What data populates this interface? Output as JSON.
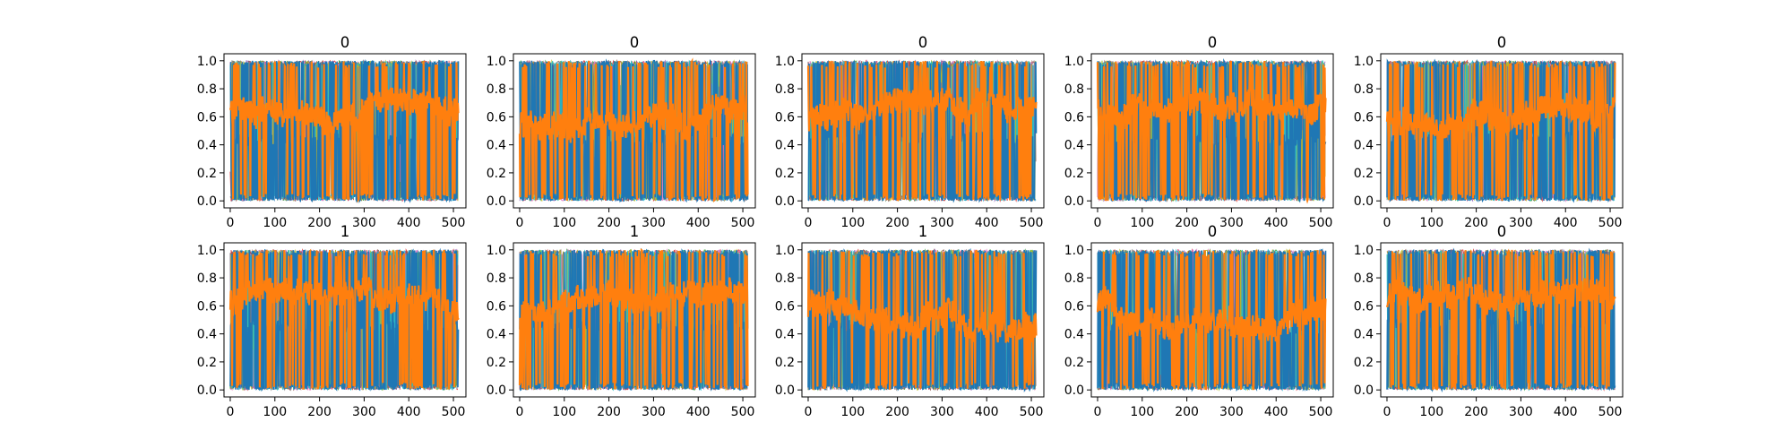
{
  "chart_data": [
    {
      "type": "line",
      "title": "0",
      "xlabel": "",
      "ylabel": "",
      "xlim": [
        -14,
        528
      ],
      "ylim": [
        -0.05,
        1.05
      ],
      "xticks": [
        "0",
        "100",
        "200",
        "300",
        "400",
        "500"
      ],
      "yticks": [
        "0.0",
        "0.2",
        "0.4",
        "0.6",
        "0.8",
        "1.0"
      ],
      "n_points": 512,
      "grid": false,
      "legend": "none",
      "series_colors": [
        "#1f77b4",
        "#ff7f0e",
        "#2ca02c",
        "#d62728",
        "#9467bd",
        "#8c564b",
        "#e377c2",
        "#7f7f7f",
        "#bcbd22",
        "#17becf"
      ],
      "dominant_series": [
        "#1f77b4",
        "#ff7f0e"
      ]
    },
    {
      "type": "line",
      "title": "0",
      "xlabel": "",
      "ylabel": "",
      "xlim": [
        -14,
        528
      ],
      "ylim": [
        -0.05,
        1.05
      ],
      "xticks": [
        "0",
        "100",
        "200",
        "300",
        "400",
        "500"
      ],
      "yticks": [
        "0.0",
        "0.2",
        "0.4",
        "0.6",
        "0.8",
        "1.0"
      ],
      "n_points": 512,
      "grid": false,
      "legend": "none",
      "series_colors": [
        "#1f77b4",
        "#ff7f0e",
        "#2ca02c",
        "#d62728",
        "#9467bd",
        "#8c564b",
        "#e377c2",
        "#7f7f7f",
        "#bcbd22",
        "#17becf"
      ],
      "dominant_series": [
        "#1f77b4",
        "#ff7f0e"
      ]
    },
    {
      "type": "line",
      "title": "0",
      "xlabel": "",
      "ylabel": "",
      "xlim": [
        -14,
        528
      ],
      "ylim": [
        -0.05,
        1.05
      ],
      "xticks": [
        "0",
        "100",
        "200",
        "300",
        "400",
        "500"
      ],
      "yticks": [
        "0.0",
        "0.2",
        "0.4",
        "0.6",
        "0.8",
        "1.0"
      ],
      "n_points": 512,
      "grid": false,
      "legend": "none",
      "series_colors": [
        "#1f77b4",
        "#ff7f0e",
        "#2ca02c",
        "#d62728",
        "#9467bd",
        "#8c564b",
        "#e377c2",
        "#7f7f7f",
        "#bcbd22",
        "#17becf"
      ],
      "dominant_series": [
        "#1f77b4",
        "#ff7f0e"
      ]
    },
    {
      "type": "line",
      "title": "0",
      "xlabel": "",
      "ylabel": "",
      "xlim": [
        -14,
        528
      ],
      "ylim": [
        -0.05,
        1.05
      ],
      "xticks": [
        "0",
        "100",
        "200",
        "300",
        "400",
        "500"
      ],
      "yticks": [
        "0.0",
        "0.2",
        "0.4",
        "0.6",
        "0.8",
        "1.0"
      ],
      "n_points": 512,
      "grid": false,
      "legend": "none",
      "series_colors": [
        "#1f77b4",
        "#ff7f0e",
        "#2ca02c",
        "#d62728",
        "#9467bd",
        "#8c564b",
        "#e377c2",
        "#7f7f7f",
        "#bcbd22",
        "#17becf"
      ],
      "dominant_series": [
        "#1f77b4",
        "#ff7f0e"
      ]
    },
    {
      "type": "line",
      "title": "0",
      "xlabel": "",
      "ylabel": "",
      "xlim": [
        -14,
        528
      ],
      "ylim": [
        -0.05,
        1.05
      ],
      "xticks": [
        "0",
        "100",
        "200",
        "300",
        "400",
        "500"
      ],
      "yticks": [
        "0.0",
        "0.2",
        "0.4",
        "0.6",
        "0.8",
        "1.0"
      ],
      "n_points": 512,
      "grid": false,
      "legend": "none",
      "series_colors": [
        "#1f77b4",
        "#ff7f0e",
        "#2ca02c",
        "#d62728",
        "#9467bd",
        "#8c564b",
        "#e377c2",
        "#7f7f7f",
        "#bcbd22",
        "#17becf"
      ],
      "dominant_series": [
        "#1f77b4",
        "#ff7f0e"
      ]
    },
    {
      "type": "line",
      "title": "1",
      "xlabel": "",
      "ylabel": "",
      "xlim": [
        -14,
        528
      ],
      "ylim": [
        -0.05,
        1.05
      ],
      "xticks": [
        "0",
        "100",
        "200",
        "300",
        "400",
        "500"
      ],
      "yticks": [
        "0.0",
        "0.2",
        "0.4",
        "0.6",
        "0.8",
        "1.0"
      ],
      "n_points": 512,
      "grid": false,
      "legend": "none",
      "series_colors": [
        "#1f77b4",
        "#ff7f0e",
        "#2ca02c",
        "#d62728",
        "#9467bd",
        "#8c564b",
        "#e377c2",
        "#7f7f7f",
        "#bcbd22",
        "#17becf"
      ],
      "dominant_series": [
        "#1f77b4",
        "#ff7f0e"
      ]
    },
    {
      "type": "line",
      "title": "1",
      "xlabel": "",
      "ylabel": "",
      "xlim": [
        -14,
        528
      ],
      "ylim": [
        -0.05,
        1.05
      ],
      "xticks": [
        "0",
        "100",
        "200",
        "300",
        "400",
        "500"
      ],
      "yticks": [
        "0.0",
        "0.2",
        "0.4",
        "0.6",
        "0.8",
        "1.0"
      ],
      "n_points": 512,
      "grid": false,
      "legend": "none",
      "series_colors": [
        "#1f77b4",
        "#ff7f0e",
        "#2ca02c",
        "#d62728",
        "#9467bd",
        "#8c564b",
        "#e377c2",
        "#7f7f7f",
        "#bcbd22",
        "#17becf"
      ],
      "dominant_series": [
        "#1f77b4",
        "#ff7f0e"
      ]
    },
    {
      "type": "line",
      "title": "1",
      "xlabel": "",
      "ylabel": "",
      "xlim": [
        -14,
        528
      ],
      "ylim": [
        -0.05,
        1.05
      ],
      "xticks": [
        "0",
        "100",
        "200",
        "300",
        "400",
        "500"
      ],
      "yticks": [
        "0.0",
        "0.2",
        "0.4",
        "0.6",
        "0.8",
        "1.0"
      ],
      "n_points": 512,
      "grid": false,
      "legend": "none",
      "series_colors": [
        "#1f77b4",
        "#ff7f0e",
        "#2ca02c",
        "#d62728",
        "#9467bd",
        "#8c564b",
        "#e377c2",
        "#7f7f7f",
        "#bcbd22",
        "#17becf"
      ],
      "dominant_series": [
        "#1f77b4",
        "#ff7f0e"
      ]
    },
    {
      "type": "line",
      "title": "0",
      "xlabel": "",
      "ylabel": "",
      "xlim": [
        -14,
        528
      ],
      "ylim": [
        -0.05,
        1.05
      ],
      "xticks": [
        "0",
        "100",
        "200",
        "300",
        "400",
        "500"
      ],
      "yticks": [
        "0.0",
        "0.2",
        "0.4",
        "0.6",
        "0.8",
        "1.0"
      ],
      "n_points": 512,
      "grid": false,
      "legend": "none",
      "series_colors": [
        "#1f77b4",
        "#ff7f0e",
        "#2ca02c",
        "#d62728",
        "#9467bd",
        "#8c564b",
        "#e377c2",
        "#7f7f7f",
        "#bcbd22",
        "#17becf"
      ],
      "dominant_series": [
        "#1f77b4",
        "#ff7f0e"
      ]
    },
    {
      "type": "line",
      "title": "0",
      "xlabel": "",
      "ylabel": "",
      "xlim": [
        -14,
        528
      ],
      "ylim": [
        -0.05,
        1.05
      ],
      "xticks": [
        "0",
        "100",
        "200",
        "300",
        "400",
        "500"
      ],
      "yticks": [
        "0.0",
        "0.2",
        "0.4",
        "0.6",
        "0.8",
        "1.0"
      ],
      "n_points": 512,
      "grid": false,
      "legend": "none",
      "series_colors": [
        "#1f77b4",
        "#ff7f0e",
        "#2ca02c",
        "#d62728",
        "#9467bd",
        "#8c564b",
        "#e377c2",
        "#7f7f7f",
        "#bcbd22",
        "#17becf"
      ],
      "dominant_series": [
        "#1f77b4",
        "#ff7f0e"
      ]
    }
  ]
}
